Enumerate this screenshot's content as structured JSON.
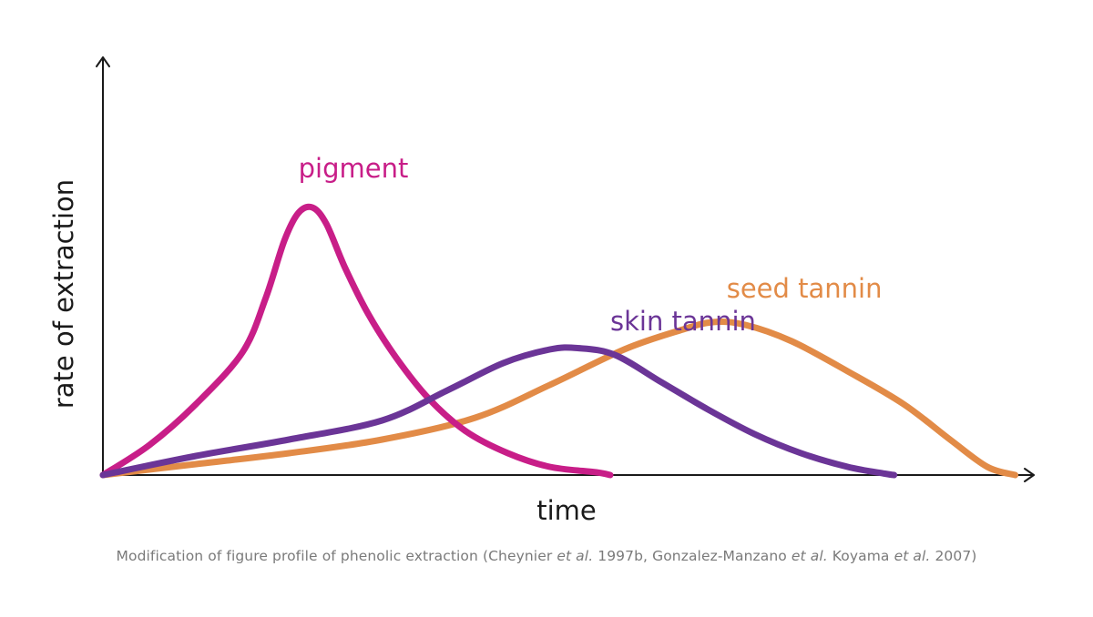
{
  "chart_data": {
    "type": "line",
    "xlabel": "time",
    "ylabel": "rate of extraction",
    "xlim": [
      0,
      10
    ],
    "ylim": [
      0,
      10
    ],
    "grid": false,
    "ticks": false,
    "series": [
      {
        "name": "pigment",
        "color": "#c81e88",
        "label_anchor": [
          2.1,
          10.9
        ],
        "points": [
          [
            0,
            0
          ],
          [
            0.5,
            1.1
          ],
          [
            1.0,
            2.6
          ],
          [
            1.5,
            4.5
          ],
          [
            1.75,
            6.5
          ],
          [
            1.95,
            8.6
          ],
          [
            2.1,
            9.6
          ],
          [
            2.25,
            9.8
          ],
          [
            2.4,
            9.2
          ],
          [
            2.6,
            7.6
          ],
          [
            2.85,
            5.9
          ],
          [
            3.15,
            4.3
          ],
          [
            3.5,
            2.8
          ],
          [
            3.9,
            1.6
          ],
          [
            4.35,
            0.8
          ],
          [
            4.8,
            0.3
          ],
          [
            5.3,
            0.1
          ],
          [
            5.45,
            0
          ]
        ]
      },
      {
        "name": "skin tannin",
        "color": "#6b3597",
        "label_anchor": [
          5.45,
          5.3
        ],
        "points": [
          [
            0,
            0
          ],
          [
            1,
            0.7
          ],
          [
            2,
            1.3
          ],
          [
            3,
            2.0
          ],
          [
            3.7,
            3.1
          ],
          [
            4.3,
            4.1
          ],
          [
            4.8,
            4.6
          ],
          [
            5.1,
            4.65
          ],
          [
            5.5,
            4.4
          ],
          [
            6.0,
            3.4
          ],
          [
            6.5,
            2.4
          ],
          [
            7.0,
            1.5
          ],
          [
            7.5,
            0.8
          ],
          [
            8.0,
            0.3
          ],
          [
            8.4,
            0.05
          ],
          [
            8.5,
            0
          ]
        ]
      },
      {
        "name": "seed tannin",
        "color": "#e28b47",
        "label_anchor": [
          6.7,
          6.5
        ],
        "points": [
          [
            0,
            0
          ],
          [
            1,
            0.4
          ],
          [
            2,
            0.8
          ],
          [
            3,
            1.3
          ],
          [
            4,
            2.1
          ],
          [
            4.8,
            3.3
          ],
          [
            5.6,
            4.6
          ],
          [
            6.2,
            5.3
          ],
          [
            6.55,
            5.6
          ],
          [
            6.9,
            5.5
          ],
          [
            7.4,
            4.9
          ],
          [
            8.0,
            3.8
          ],
          [
            8.6,
            2.6
          ],
          [
            9.1,
            1.3
          ],
          [
            9.5,
            0.3
          ],
          [
            9.8,
            0
          ]
        ]
      }
    ]
  },
  "caption": {
    "part1": "Modification of figure profile of phenolic extraction (Cheynier ",
    "etal1": "et al.",
    "part2": " 1997b, Gonzalez-Manzano ",
    "etal2": "et al.",
    "part3": " Koyama ",
    "etal3": "et al.",
    "part4": " 2007)"
  }
}
